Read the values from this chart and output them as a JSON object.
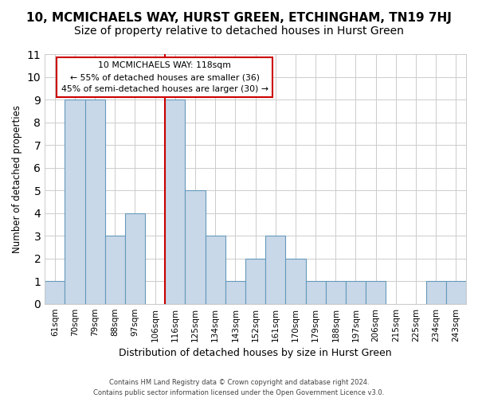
{
  "title": "10, MCMICHAELS WAY, HURST GREEN, ETCHINGHAM, TN19 7HJ",
  "subtitle": "Size of property relative to detached houses in Hurst Green",
  "xlabel": "Distribution of detached houses by size in Hurst Green",
  "ylabel": "Number of detached properties",
  "categories": [
    "61sqm",
    "70sqm",
    "79sqm",
    "88sqm",
    "97sqm",
    "106sqm",
    "116sqm",
    "125sqm",
    "134sqm",
    "143sqm",
    "152sqm",
    "161sqm",
    "170sqm",
    "179sqm",
    "188sqm",
    "197sqm",
    "206sqm",
    "215sqm",
    "225sqm",
    "234sqm",
    "243sqm"
  ],
  "values": [
    1,
    9,
    9,
    3,
    4,
    0,
    9,
    5,
    3,
    1,
    2,
    3,
    2,
    1,
    1,
    1,
    1,
    0,
    0,
    1,
    1
  ],
  "bar_color": "#c8d8e8",
  "bar_edge_color": "#6699bb",
  "red_line_x": 6,
  "red_line_color": "#cc0000",
  "ylim": [
    0,
    11
  ],
  "yticks": [
    0,
    1,
    2,
    3,
    4,
    5,
    6,
    7,
    8,
    9,
    10,
    11
  ],
  "annotation_title": "10 MCMICHAELS WAY: 118sqm",
  "annotation_line1": "← 55% of detached houses are smaller (36)",
  "annotation_line2": "45% of semi-detached houses are larger (30) →",
  "annotation_box_color": "#ffffff",
  "annotation_box_edge": "#cc0000",
  "footer_line1": "Contains HM Land Registry data © Crown copyright and database right 2024.",
  "footer_line2": "Contains public sector information licensed under the Open Government Licence v3.0.",
  "background_color": "#ffffff",
  "grid_color": "#cccccc",
  "title_fontsize": 11,
  "subtitle_fontsize": 10
}
